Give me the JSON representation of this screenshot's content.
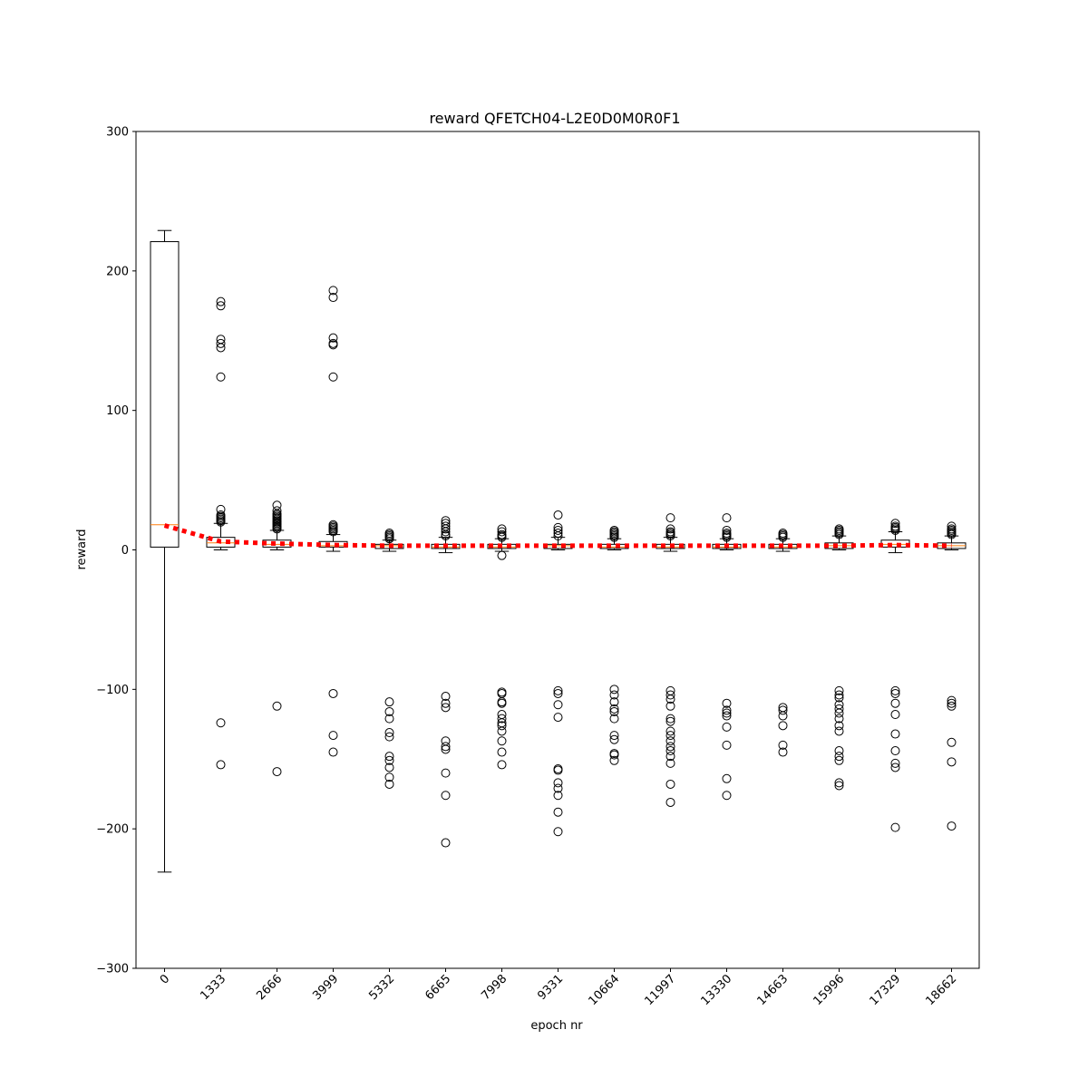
{
  "chart_data": {
    "type": "box",
    "title": "reward QFETCH04-L2E0D0M0R0F1",
    "xlabel": "epoch nr",
    "ylabel": "reward",
    "ylim": [
      -300,
      300
    ],
    "yticks": [
      -300,
      -200,
      -100,
      0,
      100,
      200,
      300
    ],
    "categories": [
      "0",
      "1333",
      "2666",
      "3999",
      "5332",
      "6665",
      "7998",
      "9331",
      "10664",
      "11997",
      "13330",
      "14663",
      "15996",
      "17329",
      "18662"
    ],
    "boxes": [
      {
        "whislo": -231,
        "q1": 2,
        "med": 18,
        "q3": 221,
        "whishi": 229,
        "fliers": []
      },
      {
        "whislo": 0,
        "q1": 2,
        "med": 5,
        "q3": 9,
        "whishi": 19,
        "fliers": [
          178,
          175,
          151,
          148,
          145,
          124,
          29,
          25,
          24,
          23,
          22,
          21,
          20,
          -124,
          -154
        ]
      },
      {
        "whislo": 0,
        "q1": 2,
        "med": 4,
        "q3": 7,
        "whishi": 14,
        "fliers": [
          32,
          28,
          26,
          25,
          24,
          23,
          22,
          21,
          20,
          19,
          18,
          17,
          16,
          15,
          -112,
          -159
        ]
      },
      {
        "whislo": -1,
        "q1": 2,
        "med": 3,
        "q3": 6,
        "whishi": 11,
        "fliers": [
          186,
          181,
          152,
          148,
          147,
          124,
          18,
          17,
          16,
          15,
          14,
          13,
          -103,
          -133,
          -145
        ]
      },
      {
        "whislo": -1,
        "q1": 1,
        "med": 3,
        "q3": 4,
        "whishi": 7,
        "fliers": [
          12,
          11,
          10,
          9,
          8,
          -109,
          -116,
          -121,
          -131,
          -134,
          -148,
          -151,
          -156,
          -163,
          -168
        ]
      },
      {
        "whislo": -2,
        "q1": 1,
        "med": 2,
        "q3": 4,
        "whishi": 9,
        "fliers": [
          21,
          19,
          17,
          15,
          13,
          11,
          10,
          -105,
          -110,
          -113,
          -137,
          -141,
          -143,
          -160,
          -176,
          -210
        ]
      },
      {
        "whislo": -1,
        "q1": 1,
        "med": 2,
        "q3": 4,
        "whishi": 8,
        "fliers": [
          15,
          13,
          11,
          10,
          9,
          -4,
          -102,
          -103,
          -109,
          -110,
          -118,
          -121,
          -124,
          -126,
          -130,
          -137,
          -145,
          -154
        ]
      },
      {
        "whislo": 0,
        "q1": 1,
        "med": 3,
        "q3": 4,
        "whishi": 9,
        "fliers": [
          25,
          16,
          14,
          12,
          10,
          -101,
          -103,
          -111,
          -120,
          -157,
          -158,
          -167,
          -171,
          -176,
          -188,
          -202
        ]
      },
      {
        "whislo": 0,
        "q1": 1,
        "med": 2,
        "q3": 4,
        "whishi": 8,
        "fliers": [
          14,
          13,
          12,
          11,
          10,
          9,
          -100,
          -104,
          -109,
          -114,
          -116,
          -121,
          -133,
          -136,
          -146,
          -147,
          -151
        ]
      },
      {
        "whislo": -1,
        "q1": 1,
        "med": 2,
        "q3": 4,
        "whishi": 9,
        "fliers": [
          23,
          15,
          13,
          12,
          11,
          10,
          -101,
          -104,
          -107,
          -112,
          -121,
          -123,
          -130,
          -133,
          -137,
          -141,
          -144,
          -148,
          -153,
          -168,
          -181
        ]
      },
      {
        "whislo": 0,
        "q1": 1,
        "med": 2,
        "q3": 4,
        "whishi": 8,
        "fliers": [
          23,
          14,
          12,
          11,
          10,
          9,
          -110,
          -115,
          -117,
          -119,
          -127,
          -140,
          -164,
          -176
        ]
      },
      {
        "whislo": -1,
        "q1": 1,
        "med": 2,
        "q3": 4,
        "whishi": 8,
        "fliers": [
          12,
          11,
          10,
          9,
          -113,
          -115,
          -119,
          -126,
          -140,
          -145
        ]
      },
      {
        "whislo": 0,
        "q1": 1,
        "med": 3,
        "q3": 5,
        "whishi": 10,
        "fliers": [
          15,
          14,
          13,
          12,
          11,
          -101,
          -104,
          -106,
          -111,
          -114,
          -117,
          -121,
          -126,
          -130,
          -144,
          -148,
          -151,
          -167,
          -169
        ]
      },
      {
        "whislo": -2,
        "q1": 2,
        "med": 4,
        "q3": 7,
        "whishi": 13,
        "fliers": [
          19,
          17,
          16,
          15,
          14,
          -101,
          -103,
          -110,
          -118,
          -132,
          -144,
          -153,
          -156,
          -199
        ]
      },
      {
        "whislo": 0,
        "q1": 1,
        "med": 3,
        "q3": 5,
        "whishi": 10,
        "fliers": [
          17,
          15,
          14,
          13,
          12,
          11,
          -108,
          -110,
          -112,
          -138,
          -152,
          -198
        ]
      }
    ],
    "mean_series": [
      17.5,
      6,
      4.5,
      3.5,
      3,
      3,
      3,
      3,
      3,
      3,
      3,
      3,
      3,
      3.5,
      3
    ],
    "colors": {
      "box": "#000000",
      "median": "#ff7f0e",
      "mean_line": "#ff0000",
      "axes": "#000000"
    },
    "grid": false,
    "legend": "none"
  }
}
